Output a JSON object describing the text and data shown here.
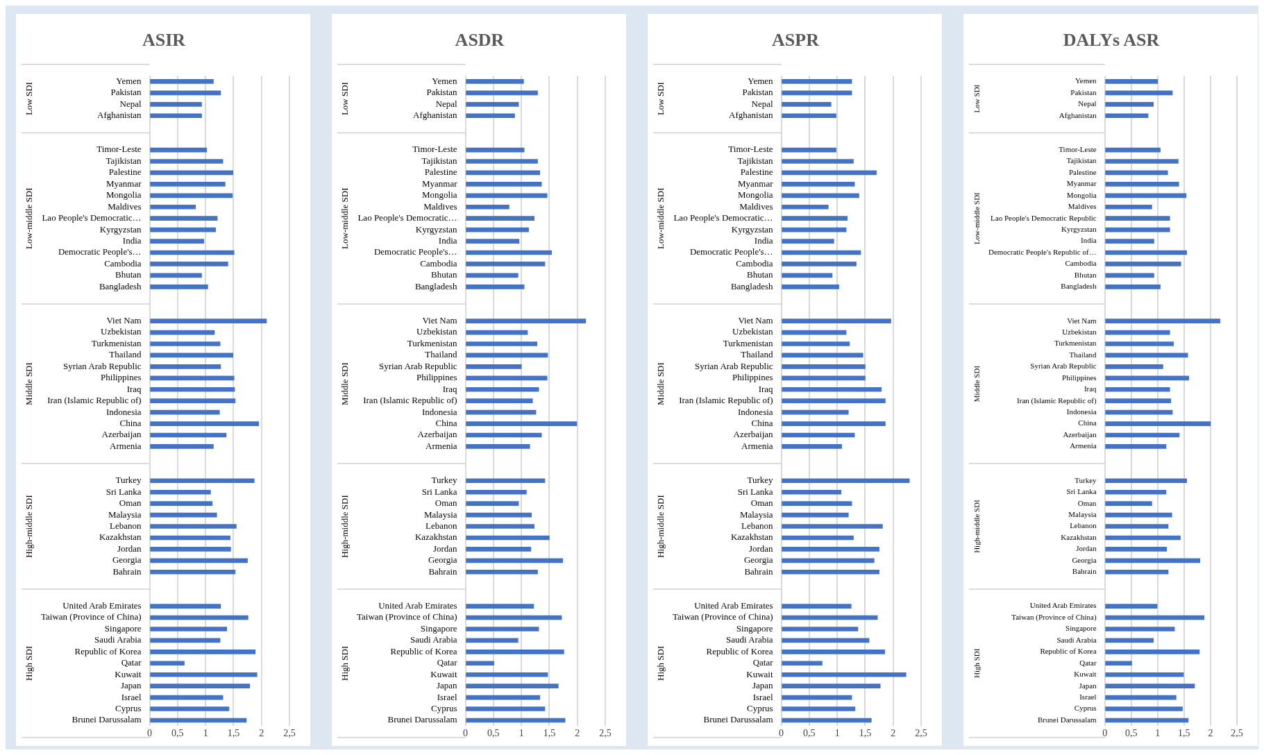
{
  "chart_data": [
    {
      "type": "bar",
      "orientation": "horizontal",
      "title": "ASIR",
      "color": "#4472c4",
      "xlim": [
        0,
        2.5
      ],
      "xticks": [
        0,
        {
          "value": 0.5,
          "label": "0,5"
        },
        1,
        {
          "value": 1.5,
          "label": "1,5"
        },
        2,
        {
          "value": 2.5,
          "label": "2,5"
        }
      ],
      "grid": "x",
      "annotations": [
        "Low SDI",
        "Low-middle SDI",
        "Middle SDI",
        "High-middle SDI",
        "High SDI"
      ],
      "categories": [
        "Yemen",
        "Pakistan",
        "Nepal",
        "Afghanistan",
        null,
        null,
        "Timor-Leste",
        "Tajikistan",
        "Palestine",
        "Myanmar",
        "Mongolia",
        "Maldives",
        "Lao People's Democratic…",
        "Kyrgyzstan",
        "India",
        "Democratic People's…",
        "Cambodia",
        "Bhutan",
        "Bangladesh",
        null,
        null,
        "Viet Nam",
        "Uzbekistan",
        "Turkmenistan",
        "Thailand",
        "Syrian Arab Republic",
        "Philippines",
        "Iraq",
        "Iran (Islamic Republic of)",
        "Indonesia",
        "China",
        "Azerbaijan",
        "Armenia",
        null,
        null,
        "Turkey",
        "Sri Lanka",
        "Oman",
        "Malaysia",
        "Lebanon",
        "Kazakhstan",
        "Jordan",
        "Georgia",
        "Bahrain",
        null,
        null,
        "United Arab Emirates",
        "Taiwan (Province of China)",
        "Singapore",
        "Saudi Arabia",
        "Republic of Korea",
        "Qatar",
        "Kuwait",
        "Japan",
        "Israel",
        "Cyprus",
        "Brunei Darussalam"
      ],
      "values": [
        1.14,
        1.27,
        0.93,
        0.93,
        null,
        null,
        1.02,
        1.31,
        1.49,
        1.35,
        1.48,
        0.82,
        1.21,
        1.18,
        0.97,
        1.51,
        1.4,
        0.93,
        1.04,
        null,
        null,
        2.09,
        1.16,
        1.26,
        1.49,
        1.27,
        1.51,
        1.52,
        1.53,
        1.25,
        1.95,
        1.37,
        1.14,
        null,
        null,
        1.87,
        1.09,
        1.12,
        1.2,
        1.55,
        1.44,
        1.45,
        1.75,
        1.53,
        null,
        null,
        1.27,
        1.76,
        1.38,
        1.26,
        1.89,
        0.62,
        1.92,
        1.79,
        1.31,
        1.42,
        1.73
      ]
    },
    {
      "type": "bar",
      "orientation": "horizontal",
      "title": "ASDR",
      "color": "#4472c4",
      "xlim": [
        0,
        2.5
      ],
      "xticks": [
        0,
        {
          "value": 0.5,
          "label": "0,5"
        },
        1,
        {
          "value": 1.5,
          "label": "1,5"
        },
        2,
        {
          "value": 2.5,
          "label": "2,5"
        }
      ],
      "grid": "x",
      "annotations": [
        "Low SDI",
        "Low-middle SDI",
        "Middle SDI",
        "High-middle SDI",
        "High SDI"
      ],
      "categories": [
        "Yemen",
        "Pakistan",
        "Nepal",
        "Afghanistan",
        null,
        null,
        "Timor-Leste",
        "Tajikistan",
        "Palestine",
        "Myanmar",
        "Mongolia",
        "Maldives",
        "Lao People's Democratic…",
        "Kyrgyzstan",
        "India",
        "Democratic People's…",
        "Cambodia",
        "Bhutan",
        "Bangladesh",
        null,
        null,
        "Viet Nam",
        "Uzbekistan",
        "Turkmenistan",
        "Thailand",
        "Syrian Arab Republic",
        "Philippines",
        "Iraq",
        "Iran (Islamic Republic of)",
        "Indonesia",
        "China",
        "Azerbaijan",
        "Armenia",
        null,
        null,
        "Turkey",
        "Sri Lanka",
        "Oman",
        "Malaysia",
        "Lebanon",
        "Kazakhstan",
        "Jordan",
        "Georgia",
        "Bahrain",
        null,
        null,
        "United Arab Emirates",
        "Taiwan (Province of China)",
        "Singapore",
        "Saudi Arabia",
        "Republic of Korea",
        "Qatar",
        "Kuwait",
        "Japan",
        "Israel",
        "Cyprus",
        "Brunei Darussalam"
      ],
      "values": [
        1.04,
        1.29,
        0.95,
        0.88,
        null,
        null,
        1.05,
        1.29,
        1.33,
        1.36,
        1.46,
        0.78,
        1.23,
        1.13,
        0.96,
        1.54,
        1.42,
        0.94,
        1.05,
        null,
        null,
        2.15,
        1.11,
        1.28,
        1.47,
        1.0,
        1.46,
        1.31,
        1.2,
        1.26,
        1.99,
        1.36,
        1.15,
        null,
        null,
        1.42,
        1.09,
        0.95,
        1.18,
        1.23,
        1.5,
        1.17,
        1.74,
        1.29,
        null,
        null,
        1.22,
        1.72,
        1.31,
        0.94,
        1.76,
        0.51,
        1.47,
        1.66,
        1.33,
        1.42,
        1.78
      ]
    },
    {
      "type": "bar",
      "orientation": "horizontal",
      "title": "ASPR",
      "color": "#4472c4",
      "xlim": [
        0,
        2.5
      ],
      "xticks": [
        0,
        {
          "value": 0.5,
          "label": "0,5"
        },
        1,
        {
          "value": 1.5,
          "label": "1,5"
        },
        2,
        {
          "value": 2.5,
          "label": "2,5"
        }
      ],
      "grid": "x",
      "annotations": [
        "Low SDI",
        "Low-middle SDI",
        "Middle SDI",
        "High-middle SDI",
        "High SDI"
      ],
      "categories": [
        "Yemen",
        "Pakistan",
        "Nepal",
        "Afghanistan",
        null,
        null,
        "Timor-Leste",
        "Tajikistan",
        "Palestine",
        "Myanmar",
        "Mongolia",
        "Maldives",
        "Lao People's Democratic…",
        "Kyrgyzstan",
        "India",
        "Democratic People's…",
        "Cambodia",
        "Bhutan",
        "Bangladesh",
        null,
        null,
        "Viet Nam",
        "Uzbekistan",
        "Turkmenistan",
        "Thailand",
        "Syrian Arab Republic",
        "Philippines",
        "Iraq",
        "Iran (Islamic Republic of)",
        "Indonesia",
        "China",
        "Azerbaijan",
        "Armenia",
        null,
        null,
        "Turkey",
        "Sri Lanka",
        "Oman",
        "Malaysia",
        "Lebanon",
        "Kazakhstan",
        "Jordan",
        "Georgia",
        "Bahrain",
        null,
        null,
        "United Arab Emirates",
        "Taiwan (Province of China)",
        "Singapore",
        "Saudi Arabia",
        "Republic of Korea",
        "Qatar",
        "Kuwait",
        "Japan",
        "Israel",
        "Cyprus",
        "Brunei Darussalam"
      ],
      "values": [
        1.26,
        1.26,
        0.89,
        0.98,
        null,
        null,
        0.98,
        1.29,
        1.7,
        1.31,
        1.39,
        0.84,
        1.18,
        1.16,
        0.94,
        1.42,
        1.34,
        0.91,
        1.03,
        null,
        null,
        1.96,
        1.16,
        1.22,
        1.46,
        1.5,
        1.5,
        1.79,
        1.86,
        1.2,
        1.86,
        1.31,
        1.08,
        null,
        null,
        2.29,
        1.07,
        1.26,
        1.2,
        1.81,
        1.29,
        1.75,
        1.66,
        1.75,
        null,
        null,
        1.25,
        1.72,
        1.37,
        1.57,
        1.85,
        0.73,
        2.23,
        1.77,
        1.26,
        1.32,
        1.61
      ]
    },
    {
      "type": "bar",
      "orientation": "horizontal",
      "title": "DALYs ASR",
      "color": "#4472c4",
      "xlim": [
        0,
        2.5
      ],
      "xticks": [
        0,
        {
          "value": 0.5,
          "label": "0,5"
        },
        1,
        {
          "value": 1.5,
          "label": "1,5"
        },
        2,
        {
          "value": 2.5,
          "label": "2,5"
        }
      ],
      "grid": "x",
      "annotations": [
        "Low SDI",
        "Low-middle SDI",
        "Middle SDI",
        "High-middle SDI",
        "High SDI"
      ],
      "categories": [
        "Yemen",
        "Pakistan",
        "Nepal",
        "Afghanistan",
        null,
        null,
        "Timor-Leste",
        "Tajikistan",
        "Palestine",
        "Myanmar",
        "Mongolia",
        "Maldives",
        "Lao People's Democratic Republic",
        "Kyrgyzstan",
        "India",
        "Democratic People's Republic of…",
        "Cambodia",
        "Bhutan",
        "Bangladesh",
        null,
        null,
        "Viet Nam",
        "Uzbekistan",
        "Turkmenistan",
        "Thailand",
        "Syrian Arab Republic",
        "Philippines",
        "Iraq",
        "Iran (Islamic Republic of)",
        "Indonesia",
        "China",
        "Azerbaijan",
        "Armenia",
        null,
        null,
        "Turkey",
        "Sri Lanka",
        "Oman",
        "Malaysia",
        "Lebanon",
        "Kazakhstan",
        "Jordan",
        "Georgia",
        "Bahrain",
        null,
        null,
        "United Arab Emirates",
        "Taiwan (Province of China)",
        "Singapore",
        "Saudi Arabia",
        "Republic of Korea",
        "Qatar",
        "Kuwait",
        "Japan",
        "Israel",
        "Cyprus",
        "Brunei Darussalam"
      ],
      "values": [
        1.0,
        1.28,
        0.92,
        0.82,
        null,
        null,
        1.05,
        1.39,
        1.19,
        1.4,
        1.54,
        0.89,
        1.23,
        1.23,
        0.93,
        1.55,
        1.44,
        0.93,
        1.05,
        null,
        null,
        2.18,
        1.23,
        1.3,
        1.57,
        1.1,
        1.59,
        1.23,
        1.25,
        1.28,
        2.0,
        1.41,
        1.16,
        null,
        null,
        1.55,
        1.16,
        0.89,
        1.27,
        1.2,
        1.43,
        1.17,
        1.8,
        1.2,
        null,
        null,
        0.99,
        1.88,
        1.32,
        0.92,
        1.79,
        0.51,
        1.49,
        1.7,
        1.35,
        1.47,
        1.58
      ]
    }
  ]
}
